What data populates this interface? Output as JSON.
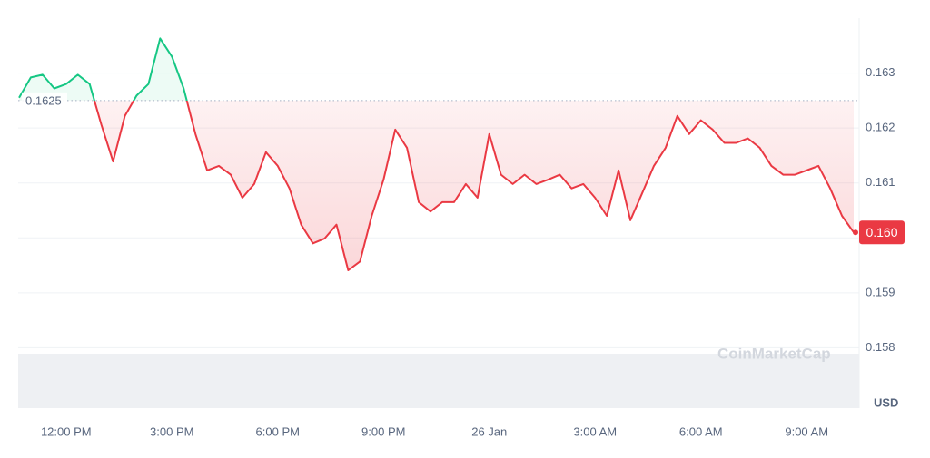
{
  "chart_data": {
    "type": "line",
    "categories": [
      null,
      null,
      null,
      null,
      "12:00 PM",
      null,
      null,
      null,
      null,
      null,
      null,
      null,
      null,
      "3:00 PM",
      null,
      null,
      null,
      null,
      null,
      null,
      null,
      null,
      "6:00 PM",
      null,
      null,
      null,
      null,
      null,
      null,
      null,
      null,
      "9:00 PM",
      null,
      null,
      null,
      null,
      null,
      null,
      null,
      null,
      "26 Jan",
      null,
      null,
      null,
      null,
      null,
      null,
      null,
      null,
      "3:00 AM",
      null,
      null,
      null,
      null,
      null,
      null,
      null,
      null,
      "6:00 AM",
      null,
      null,
      null,
      null,
      null,
      null,
      null,
      null,
      "9:00 AM",
      null,
      null,
      null,
      null
    ],
    "values": [
      0.16255,
      0.16292,
      0.16297,
      0.16272,
      0.1628,
      0.16297,
      0.1628,
      0.16206,
      0.16139,
      0.16222,
      0.16259,
      0.1628,
      0.16363,
      0.1633,
      0.16272,
      0.16189,
      0.16123,
      0.16131,
      0.16115,
      0.16073,
      0.16098,
      0.16156,
      0.16131,
      0.1609,
      0.16024,
      0.1599,
      0.15999,
      0.16024,
      0.15941,
      0.15957,
      0.1604,
      0.16106,
      0.16197,
      0.16164,
      0.16065,
      0.16048,
      0.16065,
      0.16065,
      0.16098,
      0.16073,
      0.16189,
      0.16115,
      0.16098,
      0.16115,
      0.16098,
      0.16106,
      0.16115,
      0.1609,
      0.16098,
      0.16073,
      0.1604,
      0.16123,
      0.16032,
      0.16081,
      0.16131,
      0.16164,
      0.16222,
      0.16189,
      0.16214,
      0.16197,
      0.16173,
      0.16173,
      0.16181,
      0.16164,
      0.16131,
      0.16115,
      0.16115,
      0.16123,
      0.16131,
      0.1609,
      0.1604,
      0.1601
    ],
    "baseline": 0.1625,
    "price_label": "0.160",
    "up_color": "#16c784",
    "down_color": "#ea3943",
    "ylim": [
      0.1569,
      0.164
    ],
    "yticks": [
      0.158,
      0.159,
      0.16,
      0.161,
      0.162,
      0.163
    ],
    "grid": true,
    "currency": "USD",
    "watermark": "CoinMarketCap"
  }
}
